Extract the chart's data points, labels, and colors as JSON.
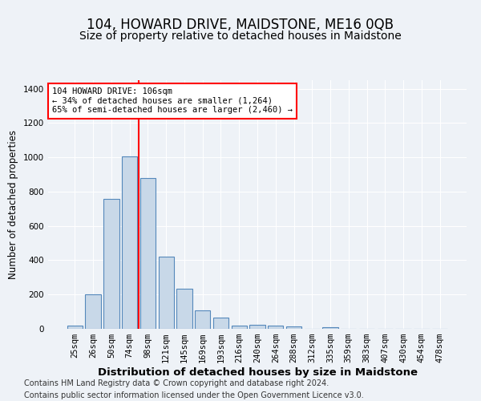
{
  "title": "104, HOWARD DRIVE, MAIDSTONE, ME16 0QB",
  "subtitle": "Size of property relative to detached houses in Maidstone",
  "xlabel": "Distribution of detached houses by size in Maidstone",
  "ylabel": "Number of detached properties",
  "categories": [
    "25sqm",
    "26sqm",
    "50sqm",
    "74sqm",
    "98sqm",
    "121sqm",
    "145sqm",
    "169sqm",
    "193sqm",
    "216sqm",
    "240sqm",
    "264sqm",
    "288sqm",
    "312sqm",
    "335sqm",
    "359sqm",
    "383sqm",
    "407sqm",
    "430sqm",
    "454sqm",
    "478sqm"
  ],
  "bar_values": [
    20,
    200,
    760,
    1005,
    880,
    420,
    235,
    108,
    65,
    20,
    22,
    20,
    12,
    0,
    10,
    0,
    0,
    0,
    0,
    0,
    0
  ],
  "bar_color": "#c8d8e8",
  "bar_edge_color": "#5588bb",
  "vline_color": "red",
  "vline_x": 3.5,
  "annotation_text": "104 HOWARD DRIVE: 106sqm\n← 34% of detached houses are smaller (1,264)\n65% of semi-detached houses are larger (2,460) →",
  "annotation_box_color": "white",
  "annotation_box_edge": "red",
  "footer_line1": "Contains HM Land Registry data © Crown copyright and database right 2024.",
  "footer_line2": "Contains public sector information licensed under the Open Government Licence v3.0.",
  "ylim": [
    0,
    1450
  ],
  "yticks": [
    0,
    200,
    400,
    600,
    800,
    1000,
    1200,
    1400
  ],
  "title_fontsize": 12,
  "subtitle_fontsize": 10,
  "xlabel_fontsize": 9.5,
  "ylabel_fontsize": 8.5,
  "tick_fontsize": 7.5,
  "footer_fontsize": 7,
  "background_color": "#eef2f7",
  "plot_bg_color": "#eef2f7"
}
